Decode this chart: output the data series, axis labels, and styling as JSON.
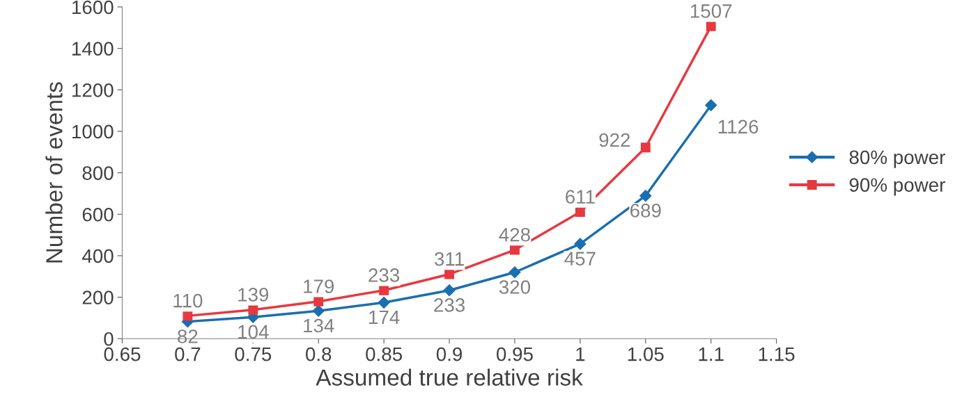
{
  "chart_data": {
    "type": "line",
    "xlabel": "Assumed true relative risk",
    "ylabel": "Number of events",
    "x": [
      0.7,
      0.75,
      0.8,
      0.85,
      0.9,
      0.95,
      1,
      1.05,
      1.1
    ],
    "series": [
      {
        "name": "80% power",
        "color": "#1a6fb0",
        "marker": "diamond",
        "values": [
          82,
          104,
          134,
          174,
          233,
          320,
          457,
          689,
          1126
        ]
      },
      {
        "name": "90% power",
        "color": "#e8383f",
        "marker": "square",
        "values": [
          110,
          139,
          179,
          233,
          311,
          428,
          611,
          922,
          1507
        ]
      }
    ],
    "xlim": [
      0.65,
      1.15
    ],
    "xticks": [
      0.65,
      0.7,
      0.75,
      0.8,
      0.85,
      0.9,
      0.95,
      1,
      1.05,
      1.1,
      1.15
    ],
    "ylim": [
      0,
      1600
    ],
    "yticks": [
      0,
      200,
      400,
      600,
      800,
      1000,
      1200,
      1400,
      1600
    ],
    "data_labels": true,
    "legend": "right",
    "grid": false,
    "line_style": "solid"
  }
}
